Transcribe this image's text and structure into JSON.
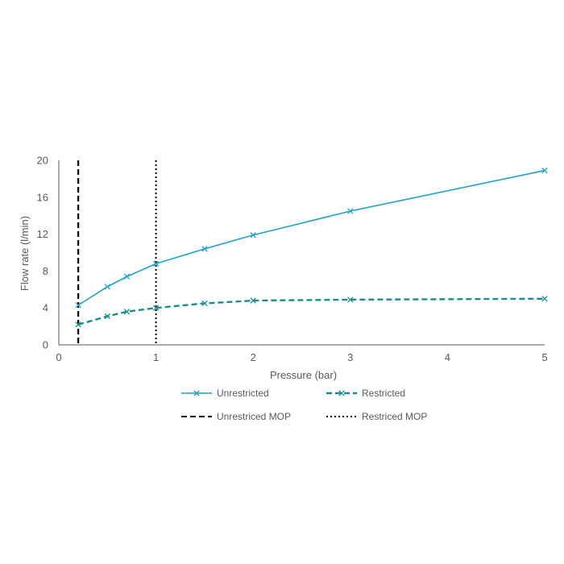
{
  "chart_data": {
    "type": "line",
    "xlabel": "Pressure (bar)",
    "ylabel": "Flow rate (l/min)",
    "xlim": [
      0,
      5
    ],
    "ylim": [
      0,
      20
    ],
    "x_ticks": [
      "0",
      "1",
      "2",
      "3",
      "4",
      "5"
    ],
    "y_ticks": [
      "0",
      "4",
      "8",
      "12",
      "16",
      "20"
    ],
    "grid": false,
    "legend_position": "bottom",
    "series": [
      {
        "name": "Unrestricted",
        "color": "#1CA3C7",
        "style": "solid",
        "marker": "x",
        "x": [
          0.2,
          0.5,
          0.7,
          1.0,
          1.5,
          2.0,
          3.0,
          5.0
        ],
        "y": [
          4.3,
          6.3,
          7.4,
          8.8,
          10.4,
          11.9,
          14.5,
          18.9
        ]
      },
      {
        "name": "Restricted",
        "color": "#1A8E8E",
        "style": "dashed",
        "marker": "x",
        "x": [
          0.2,
          0.5,
          0.7,
          1.0,
          1.5,
          2.0,
          3.0,
          5.0
        ],
        "y": [
          2.2,
          3.1,
          3.6,
          4.0,
          4.5,
          4.8,
          4.9,
          5.0
        ]
      }
    ],
    "reference_lines": [
      {
        "name": "Unrestriced MOP",
        "x": 0.2,
        "color": "#000000",
        "style": "dashed"
      },
      {
        "name": "Restriced MOP",
        "x": 1.0,
        "color": "#000000",
        "style": "dotted"
      }
    ]
  }
}
